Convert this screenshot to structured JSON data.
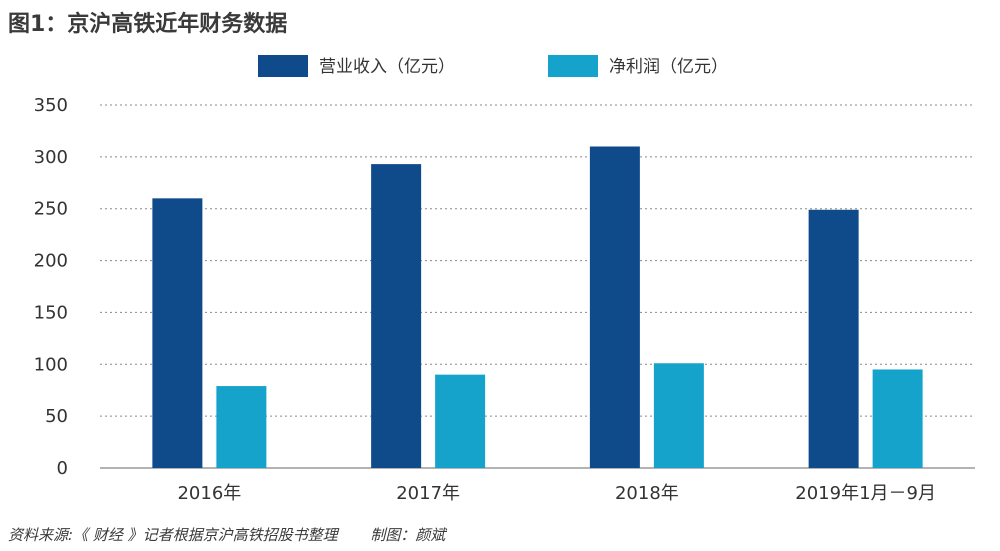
{
  "title": "图1：京沪高铁近年财务数据",
  "source": "资料来源:《 财经 》记者根据京沪高铁招股书整理",
  "credit": "制图：颜斌",
  "colors": {
    "revenue": "#0f4a8a",
    "profit": "#15a3cc",
    "grid": "#8a8a8a",
    "axis": "#9a9a9a"
  },
  "chart_data": {
    "type": "bar",
    "title": "京沪高铁近年财务数据",
    "xlabel": "",
    "ylabel": "",
    "categories": [
      "2016年",
      "2017年",
      "2018年",
      "2019年1月－9月"
    ],
    "series": [
      {
        "name": "营业收入（亿元）",
        "values": [
          260,
          293,
          310,
          249
        ]
      },
      {
        "name": "净利润（亿元）",
        "values": [
          79,
          90,
          101,
          95
        ]
      }
    ],
    "ylim": [
      0,
      350
    ],
    "yticks": [
      0,
      50,
      100,
      150,
      200,
      250,
      300,
      350
    ],
    "grid": true,
    "legend": "top-center"
  }
}
